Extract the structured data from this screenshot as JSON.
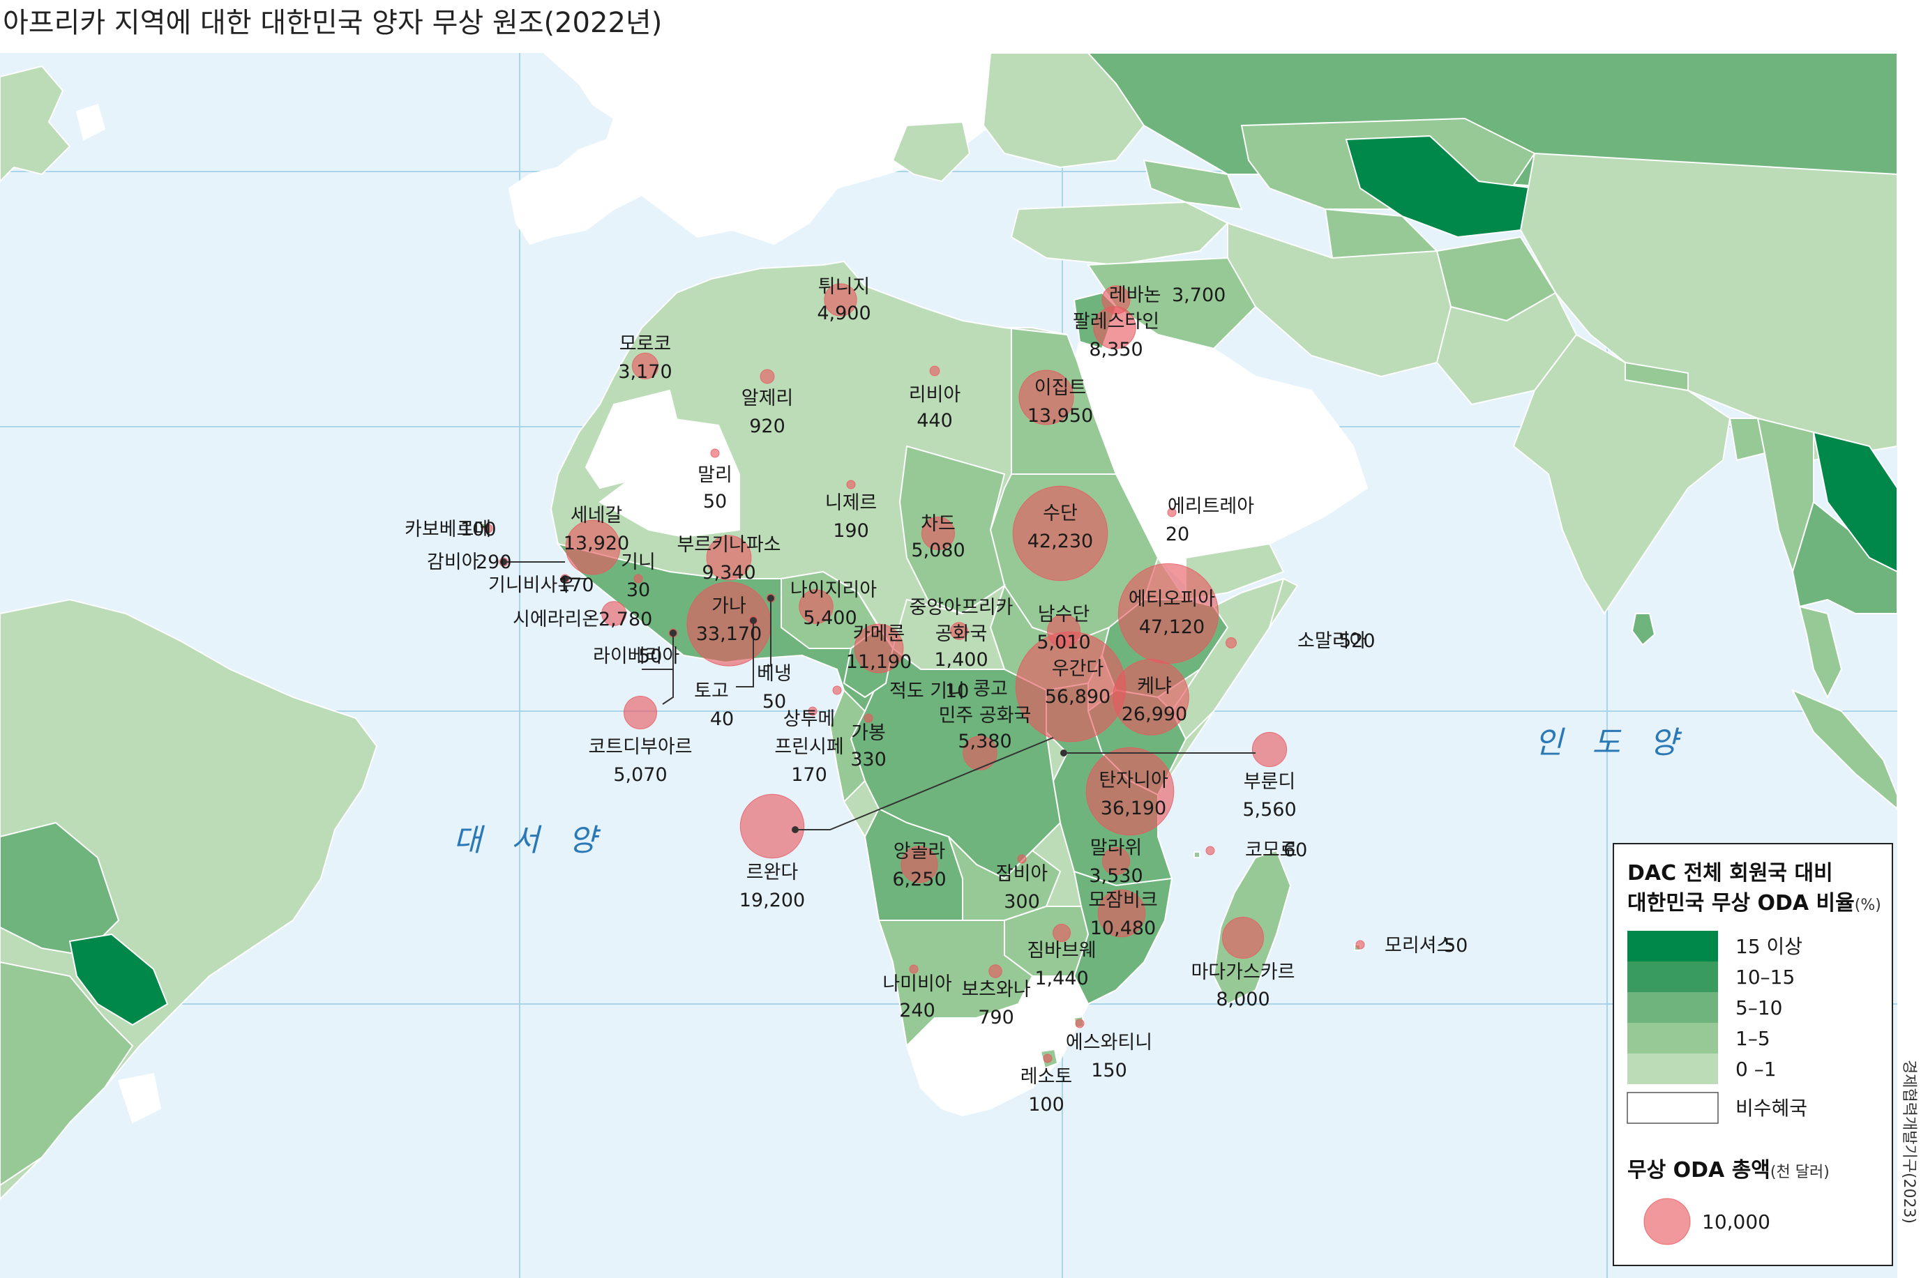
{
  "title": "아프리카 지역에 대한 대한민국 양자 무상 원조(2022년)",
  "oceans": [
    {
      "id": "atlantic",
      "label": "대 서 양"
    },
    {
      "id": "indian",
      "label": "인 도 양"
    }
  ],
  "legend": {
    "title_line1": "DAC 전체 회원국 대비",
    "title_line2": "대한민국 무상 ODA 비율",
    "title_unit": "(%)",
    "classes": [
      {
        "label": "15  이상",
        "color": "#00874a"
      },
      {
        "label": "10–15",
        "color": "#3a9b5e"
      },
      {
        "label": " 5–10",
        "color": "#6fb47d"
      },
      {
        "label": " 1–5",
        "color": "#96c996"
      },
      {
        "label": " 0 –1",
        "color": "#bcdcb8"
      },
      {
        "label": "비수혜국",
        "color": "#ffffff"
      }
    ],
    "bubble_title": "무상 ODA 총액",
    "bubble_unit": "(천 달러)",
    "bubble_example": "10,000"
  },
  "source": "경제협력개발기구(2023)",
  "colors": {
    "ocean": "#e6f3fb",
    "graticule": "#a9d4ea",
    "bubble": "#e8585f"
  },
  "countries": [
    {
      "name": "모로코",
      "value": "3,170"
    },
    {
      "name": "알제리",
      "value": "920"
    },
    {
      "name": "튀니지",
      "value": "4,900"
    },
    {
      "name": "리비아",
      "value": "440"
    },
    {
      "name": "이집트",
      "value": "13,950"
    },
    {
      "name": "레바논",
      "value": "3,700"
    },
    {
      "name": "팔레스타인",
      "value": "8,350"
    },
    {
      "name": "말리",
      "value": "50"
    },
    {
      "name": "니제르",
      "value": "190"
    },
    {
      "name": "차드",
      "value": "5,080"
    },
    {
      "name": "수단",
      "value": "42,230"
    },
    {
      "name": "에리트레아",
      "value": "20"
    },
    {
      "name": "카보베르데",
      "value": "100"
    },
    {
      "name": "세네갈",
      "value": "13,920"
    },
    {
      "name": "감비아",
      "value": "290"
    },
    {
      "name": "기니비사우",
      "value": "170"
    },
    {
      "name": "기니",
      "value": "30"
    },
    {
      "name": "부르키나파소",
      "value": "9,340"
    },
    {
      "name": "시에라리온",
      "value": "2,780"
    },
    {
      "name": "라이베리아",
      "value": "50"
    },
    {
      "name": "가나",
      "value": "33,170"
    },
    {
      "name": "나이지리아",
      "value": "5,400"
    },
    {
      "name": "토고",
      "value": "40"
    },
    {
      "name": "베냉",
      "value": "50"
    },
    {
      "name": "코트디부아르",
      "value": "5,070"
    },
    {
      "name": "중앙아프리카 공화국",
      "value": "1,400"
    },
    {
      "name": "카메룬",
      "value": "11,190"
    },
    {
      "name": "남수단",
      "value": "5,010"
    },
    {
      "name": "에티오피아",
      "value": "47,120"
    },
    {
      "name": "소말리아",
      "value": "520"
    },
    {
      "name": "적도 기니",
      "value": "10"
    },
    {
      "name": "상투메 프린시페",
      "value": "170"
    },
    {
      "name": "가봉",
      "value": "330"
    },
    {
      "name": "콩고 민주 공화국",
      "value": "5,380"
    },
    {
      "name": "우간다",
      "value": "56,890"
    },
    {
      "name": "케냐",
      "value": "26,990"
    },
    {
      "name": "르완다",
      "value": "19,200"
    },
    {
      "name": "부룬디",
      "value": "5,560"
    },
    {
      "name": "탄자니아",
      "value": "36,190"
    },
    {
      "name": "앙골라",
      "value": "6,250"
    },
    {
      "name": "잠비아",
      "value": "300"
    },
    {
      "name": "말라위",
      "value": "3,530"
    },
    {
      "name": "코모로",
      "value": "60"
    },
    {
      "name": "모잠비크",
      "value": "10,480"
    },
    {
      "name": "마다가스카르",
      "value": "8,000"
    },
    {
      "name": "모리셔스",
      "value": "50"
    },
    {
      "name": "짐바브웨",
      "value": "1,440"
    },
    {
      "name": "나미비아",
      "value": "240"
    },
    {
      "name": "보츠와나",
      "value": "790"
    },
    {
      "name": "에스와티니",
      "value": "150"
    },
    {
      "name": "레소토",
      "value": "100"
    }
  ]
}
